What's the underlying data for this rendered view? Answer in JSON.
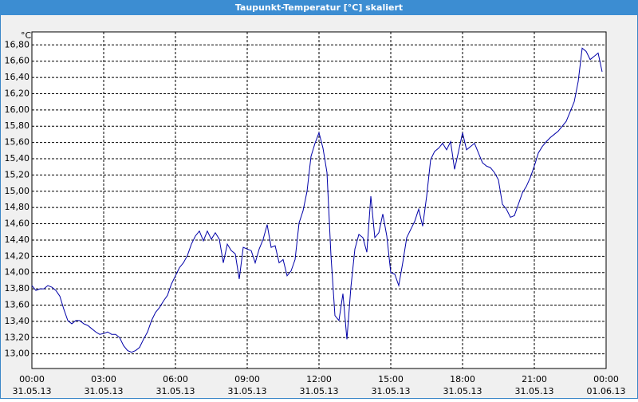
{
  "chart_data": {
    "type": "line",
    "title": "Taupunkt-Temperatur [°C] skaliert",
    "y_unit": "°C",
    "x": [
      0,
      10,
      20,
      30,
      40,
      50,
      60,
      70,
      80,
      90,
      100,
      110,
      120,
      130,
      140,
      150,
      160,
      170,
      180,
      190,
      200,
      210,
      220,
      230,
      240,
      250,
      260,
      270,
      280,
      290,
      300,
      310,
      320,
      330,
      340,
      350,
      360,
      370,
      380,
      390,
      400,
      410,
      420,
      430,
      440,
      450,
      460,
      470,
      480,
      490,
      500,
      510,
      520,
      530,
      540,
      550,
      560,
      570,
      580,
      590,
      600,
      610,
      620,
      630,
      640,
      650,
      660,
      670,
      680,
      690,
      700,
      710,
      720,
      730,
      740,
      750,
      760,
      770,
      780,
      790,
      800,
      810,
      820,
      830,
      840,
      850,
      860,
      870,
      880,
      890,
      900,
      910,
      920,
      930,
      940,
      950,
      960,
      970,
      980,
      990,
      1000,
      1010,
      1020,
      1030,
      1040,
      1050,
      1060,
      1070,
      1080,
      1090,
      1100,
      1110,
      1120,
      1130,
      1140,
      1150,
      1160,
      1170,
      1180,
      1190,
      1200,
      1210,
      1220,
      1230,
      1240,
      1250,
      1260,
      1270,
      1280,
      1290,
      1300,
      1310,
      1320,
      1330,
      1340,
      1350,
      1360,
      1370,
      1380,
      1390,
      1400,
      1410,
      1420,
      1430
    ],
    "series": [
      {
        "name": "Taupunkt-Temperatur",
        "color": "#0000a8",
        "values": [
          13.84,
          13.78,
          13.8,
          13.8,
          13.84,
          13.82,
          13.78,
          13.71,
          13.55,
          13.41,
          13.37,
          13.41,
          13.41,
          13.37,
          13.35,
          13.31,
          13.27,
          13.24,
          13.25,
          13.27,
          13.24,
          13.24,
          13.2,
          13.1,
          13.04,
          13.02,
          13.04,
          13.08,
          13.18,
          13.27,
          13.41,
          13.51,
          13.57,
          13.65,
          13.72,
          13.86,
          13.96,
          14.06,
          14.12,
          14.21,
          14.35,
          14.45,
          14.51,
          14.39,
          14.51,
          14.41,
          14.49,
          14.41,
          14.12,
          14.35,
          14.27,
          14.23,
          13.92,
          14.31,
          14.29,
          14.27,
          14.12,
          14.29,
          14.41,
          14.59,
          14.31,
          14.33,
          14.12,
          14.16,
          13.96,
          14.02,
          14.16,
          14.61,
          14.76,
          15.0,
          15.43,
          15.59,
          15.72,
          15.53,
          15.23,
          14.21,
          13.47,
          13.41,
          13.74,
          13.18,
          13.82,
          14.29,
          14.47,
          14.43,
          14.25,
          14.94,
          14.43,
          14.49,
          14.72,
          14.45,
          14.0,
          13.98,
          13.84,
          14.12,
          14.43,
          14.53,
          14.63,
          14.78,
          14.57,
          14.94,
          15.39,
          15.49,
          15.53,
          15.59,
          15.51,
          15.61,
          15.27,
          15.49,
          15.72,
          15.51,
          15.55,
          15.59,
          15.47,
          15.35,
          15.31,
          15.29,
          15.23,
          15.14,
          14.84,
          14.78,
          14.68,
          14.7,
          14.84,
          14.98,
          15.06,
          15.17,
          15.31,
          15.47,
          15.55,
          15.61,
          15.66,
          15.7,
          15.74,
          15.8,
          15.86,
          15.98,
          16.1,
          16.35,
          16.76,
          16.72,
          16.62,
          16.66,
          16.7,
          16.47
        ]
      }
    ],
    "xlim": [
      0,
      1440
    ],
    "xticks": [
      {
        "value": 0,
        "label": "00:00"
      },
      {
        "value": 180,
        "label": "03:00"
      },
      {
        "value": 360,
        "label": "06:00"
      },
      {
        "value": 540,
        "label": "09:00"
      },
      {
        "value": 720,
        "label": "12:00"
      },
      {
        "value": 900,
        "label": "15:00"
      },
      {
        "value": 1080,
        "label": "18:00"
      },
      {
        "value": 1260,
        "label": "21:00"
      },
      {
        "value": 1440,
        "label": "00:00"
      }
    ],
    "xtick_dates": [
      "31.05.13",
      "31.05.13",
      "31.05.13",
      "31.05.13",
      "31.05.13",
      "31.05.13",
      "31.05.13",
      "31.05.13",
      "01.06.13"
    ],
    "ylim": [
      12.82,
      16.96
    ],
    "yticks": [
      {
        "value": 13.0,
        "label": "13,00"
      },
      {
        "value": 13.2,
        "label": "13,20"
      },
      {
        "value": 13.4,
        "label": "13,40"
      },
      {
        "value": 13.6,
        "label": "13,60"
      },
      {
        "value": 13.8,
        "label": "13,80"
      },
      {
        "value": 14.0,
        "label": "14,00"
      },
      {
        "value": 14.2,
        "label": "14,20"
      },
      {
        "value": 14.4,
        "label": "14,40"
      },
      {
        "value": 14.6,
        "label": "14,60"
      },
      {
        "value": 14.8,
        "label": "14,80"
      },
      {
        "value": 15.0,
        "label": "15,00"
      },
      {
        "value": 15.2,
        "label": "15,20"
      },
      {
        "value": 15.4,
        "label": "15,40"
      },
      {
        "value": 15.6,
        "label": "15,60"
      },
      {
        "value": 15.8,
        "label": "15,80"
      },
      {
        "value": 16.0,
        "label": "16,00"
      },
      {
        "value": 16.2,
        "label": "16,20"
      },
      {
        "value": 16.4,
        "label": "16,40"
      },
      {
        "value": 16.6,
        "label": "16,60"
      },
      {
        "value": 16.8,
        "label": "16,80"
      }
    ],
    "grid": true
  }
}
